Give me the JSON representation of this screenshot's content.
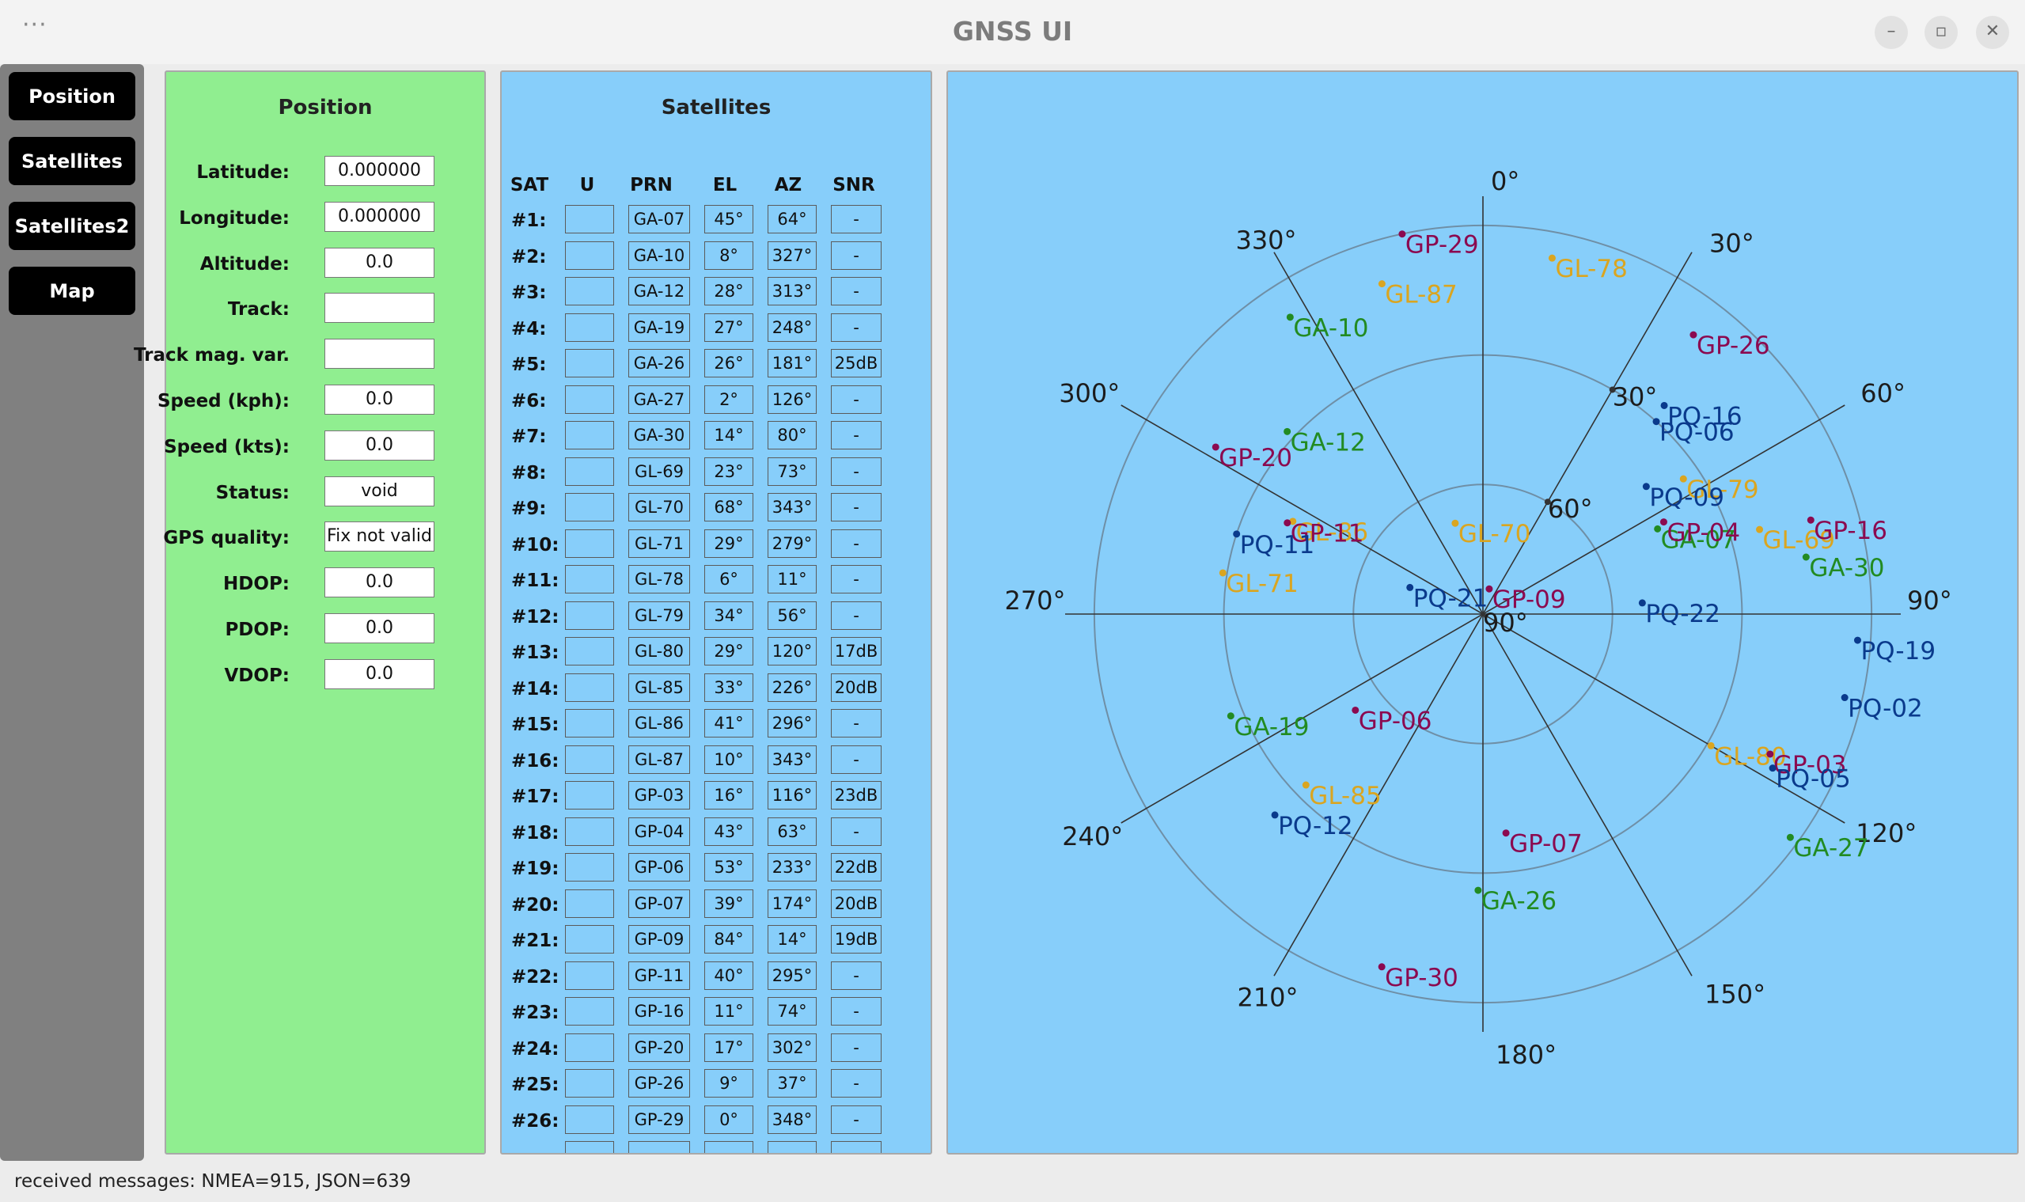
{
  "app": {
    "title": "GNSS UI",
    "menu": "···",
    "controls": {
      "minimize": "–",
      "maximize": "▫",
      "close": "✕"
    }
  },
  "nav": [
    "Position",
    "Satellites",
    "Satellites2",
    "Map"
  ],
  "position": {
    "title": "Position",
    "fields": [
      {
        "label": "Latitude:",
        "value": "0.000000"
      },
      {
        "label": "Longitude:",
        "value": "0.000000"
      },
      {
        "label": "Altitude:",
        "value": "0.0"
      },
      {
        "label": "Track:",
        "value": ""
      },
      {
        "label": "Track mag. var.",
        "value": ""
      },
      {
        "label": "Speed (kph):",
        "value": "0.0"
      },
      {
        "label": "Speed (kts):",
        "value": "0.0"
      },
      {
        "label": "Status:",
        "value": "void"
      },
      {
        "label": "GPS quality:",
        "value": "Fix not valid"
      },
      {
        "label": "HDOP:",
        "value": "0.0"
      },
      {
        "label": "PDOP:",
        "value": "0.0"
      },
      {
        "label": "VDOP:",
        "value": "0.0"
      }
    ]
  },
  "satellites": {
    "title": "Satellites",
    "columns": [
      "SAT",
      "U",
      "PRN",
      "EL",
      "AZ",
      "SNR"
    ],
    "rows": [
      {
        "idx": "#1:",
        "u": "",
        "prn": "GA-07",
        "el": "45°",
        "az": "64°",
        "snr": "-"
      },
      {
        "idx": "#2:",
        "u": "",
        "prn": "GA-10",
        "el": "8°",
        "az": "327°",
        "snr": "-"
      },
      {
        "idx": "#3:",
        "u": "",
        "prn": "GA-12",
        "el": "28°",
        "az": "313°",
        "snr": "-"
      },
      {
        "idx": "#4:",
        "u": "",
        "prn": "GA-19",
        "el": "27°",
        "az": "248°",
        "snr": "-"
      },
      {
        "idx": "#5:",
        "u": "",
        "prn": "GA-26",
        "el": "26°",
        "az": "181°",
        "snr": "25dB"
      },
      {
        "idx": "#6:",
        "u": "",
        "prn": "GA-27",
        "el": "2°",
        "az": "126°",
        "snr": "-"
      },
      {
        "idx": "#7:",
        "u": "",
        "prn": "GA-30",
        "el": "14°",
        "az": "80°",
        "snr": "-"
      },
      {
        "idx": "#8:",
        "u": "",
        "prn": "GL-69",
        "el": "23°",
        "az": "73°",
        "snr": "-"
      },
      {
        "idx": "#9:",
        "u": "",
        "prn": "GL-70",
        "el": "68°",
        "az": "343°",
        "snr": "-"
      },
      {
        "idx": "#10:",
        "u": "",
        "prn": "GL-71",
        "el": "29°",
        "az": "279°",
        "snr": "-"
      },
      {
        "idx": "#11:",
        "u": "",
        "prn": "GL-78",
        "el": "6°",
        "az": "11°",
        "snr": "-"
      },
      {
        "idx": "#12:",
        "u": "",
        "prn": "GL-79",
        "el": "34°",
        "az": "56°",
        "snr": "-"
      },
      {
        "idx": "#13:",
        "u": "",
        "prn": "GL-80",
        "el": "29°",
        "az": "120°",
        "snr": "17dB"
      },
      {
        "idx": "#14:",
        "u": "",
        "prn": "GL-85",
        "el": "33°",
        "az": "226°",
        "snr": "20dB"
      },
      {
        "idx": "#15:",
        "u": "",
        "prn": "GL-86",
        "el": "41°",
        "az": "296°",
        "snr": "-"
      },
      {
        "idx": "#16:",
        "u": "",
        "prn": "GL-87",
        "el": "10°",
        "az": "343°",
        "snr": "-"
      },
      {
        "idx": "#17:",
        "u": "",
        "prn": "GP-03",
        "el": "16°",
        "az": "116°",
        "snr": "23dB"
      },
      {
        "idx": "#18:",
        "u": "",
        "prn": "GP-04",
        "el": "43°",
        "az": "63°",
        "snr": "-"
      },
      {
        "idx": "#19:",
        "u": "",
        "prn": "GP-06",
        "el": "53°",
        "az": "233°",
        "snr": "22dB"
      },
      {
        "idx": "#20:",
        "u": "",
        "prn": "GP-07",
        "el": "39°",
        "az": "174°",
        "snr": "20dB"
      },
      {
        "idx": "#21:",
        "u": "",
        "prn": "GP-09",
        "el": "84°",
        "az": "14°",
        "snr": "19dB"
      },
      {
        "idx": "#22:",
        "u": "",
        "prn": "GP-11",
        "el": "40°",
        "az": "295°",
        "snr": "-"
      },
      {
        "idx": "#23:",
        "u": "",
        "prn": "GP-16",
        "el": "11°",
        "az": "74°",
        "snr": "-"
      },
      {
        "idx": "#24:",
        "u": "",
        "prn": "GP-20",
        "el": "17°",
        "az": "302°",
        "snr": "-"
      },
      {
        "idx": "#25:",
        "u": "",
        "prn": "GP-26",
        "el": "9°",
        "az": "37°",
        "snr": "-"
      },
      {
        "idx": "#26:",
        "u": "",
        "prn": "GP-29",
        "el": "0°",
        "az": "348°",
        "snr": "-"
      }
    ]
  },
  "skyplot": {
    "azimuth_labels": [
      "0°",
      "30°",
      "60°",
      "90°",
      "120°",
      "150°",
      "180°",
      "210°",
      "240°",
      "270°",
      "300°",
      "330°"
    ],
    "elevation_labels": [
      "30°",
      "60°",
      "90°"
    ],
    "colors": {
      "GA": "#228b22",
      "GL": "#daa520",
      "GP": "#8b0a50",
      "PQ": "#0a3a8c"
    },
    "satellites": [
      {
        "prn": "GA-07",
        "el": 45,
        "az": 64
      },
      {
        "prn": "GA-10",
        "el": 8,
        "az": 327
      },
      {
        "prn": "GA-12",
        "el": 28,
        "az": 313
      },
      {
        "prn": "GA-19",
        "el": 27,
        "az": 248
      },
      {
        "prn": "GA-26",
        "el": 26,
        "az": 181
      },
      {
        "prn": "GA-27",
        "el": 2,
        "az": 126
      },
      {
        "prn": "GA-30",
        "el": 14,
        "az": 80
      },
      {
        "prn": "GL-69",
        "el": 23,
        "az": 73
      },
      {
        "prn": "GL-70",
        "el": 68,
        "az": 343
      },
      {
        "prn": "GL-71",
        "el": 29,
        "az": 279
      },
      {
        "prn": "GL-78",
        "el": 6,
        "az": 11
      },
      {
        "prn": "GL-79",
        "el": 34,
        "az": 56
      },
      {
        "prn": "GL-80",
        "el": 29,
        "az": 120
      },
      {
        "prn": "GL-85",
        "el": 33,
        "az": 226
      },
      {
        "prn": "GL-86",
        "el": 41,
        "az": 296
      },
      {
        "prn": "GL-87",
        "el": 10,
        "az": 343
      },
      {
        "prn": "GP-03",
        "el": 16,
        "az": 116
      },
      {
        "prn": "GP-04",
        "el": 43,
        "az": 63
      },
      {
        "prn": "GP-06",
        "el": 53,
        "az": 233
      },
      {
        "prn": "GP-07",
        "el": 39,
        "az": 174
      },
      {
        "prn": "GP-09",
        "el": 84,
        "az": 14
      },
      {
        "prn": "GP-11",
        "el": 40,
        "az": 295
      },
      {
        "prn": "GP-16",
        "el": 11,
        "az": 74
      },
      {
        "prn": "GP-20",
        "el": 17,
        "az": 302
      },
      {
        "prn": "GP-26",
        "el": 9,
        "az": 37
      },
      {
        "prn": "GP-29",
        "el": 0,
        "az": 348
      },
      {
        "prn": "GP-30",
        "el": 5,
        "az": 196
      },
      {
        "prn": "PQ-02",
        "el": 4,
        "az": 103
      },
      {
        "prn": "PQ-05",
        "el": 14,
        "az": 118
      },
      {
        "prn": "PQ-06",
        "el": 30,
        "az": 42
      },
      {
        "prn": "PQ-09",
        "el": 42,
        "az": 52
      },
      {
        "prn": "PQ-11",
        "el": 30,
        "az": 288
      },
      {
        "prn": "PQ-12",
        "el": 23,
        "az": 226
      },
      {
        "prn": "PQ-16",
        "el": 26,
        "az": 41
      },
      {
        "prn": "PQ-19",
        "el": 3,
        "az": 94
      },
      {
        "prn": "PQ-21",
        "el": 72,
        "az": 290
      },
      {
        "prn": "PQ-22",
        "el": 53,
        "az": 86
      }
    ]
  },
  "status": {
    "text": "received messages: NMEA=915, JSON=639"
  }
}
